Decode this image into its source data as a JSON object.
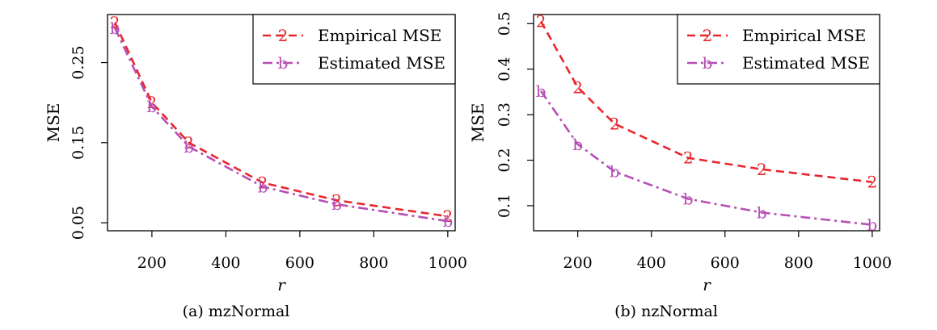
{
  "chart_data": [
    {
      "type": "line",
      "caption": "(a) mzNormal",
      "xlabel": "r",
      "ylabel": "MSE",
      "xlim": [
        80,
        1020
      ],
      "ylim": [
        0.04,
        0.31
      ],
      "xticks": [
        200,
        400,
        600,
        800,
        1000
      ],
      "xtick_labels": [
        "200",
        "400",
        "600",
        "800",
        "1000"
      ],
      "yticks": [
        0.05,
        0.15,
        0.25
      ],
      "ytick_labels": [
        "0.05",
        "0.15",
        "0.25"
      ],
      "x": [
        100,
        200,
        300,
        500,
        700,
        1000
      ],
      "series": [
        {
          "name": "Empirical MSE",
          "marker": "2",
          "color": "#e8262d",
          "dash": "dashed",
          "values": [
            0.3,
            0.2,
            0.15,
            0.1,
            0.078,
            0.058
          ]
        },
        {
          "name": "Estimated MSE",
          "marker": "b",
          "color": "#b64fb6",
          "dash": "dashdot",
          "values": [
            0.293,
            0.195,
            0.145,
            0.095,
            0.073,
            0.052
          ]
        }
      ],
      "legend": "top-right",
      "grid": false
    },
    {
      "type": "line",
      "caption": "(b) nzNormal",
      "xlabel": "r",
      "ylabel": "MSE",
      "xlim": [
        80,
        1020
      ],
      "ylim": [
        0.045,
        0.52
      ],
      "xticks": [
        200,
        400,
        600,
        800,
        1000
      ],
      "xtick_labels": [
        "200",
        "400",
        "600",
        "800",
        "1000"
      ],
      "yticks": [
        0.1,
        0.2,
        0.3,
        0.4,
        0.5
      ],
      "ytick_labels": [
        "0.1",
        "0.2",
        "0.3",
        "0.4",
        "0.5"
      ],
      "x": [
        100,
        200,
        300,
        500,
        700,
        1000
      ],
      "series": [
        {
          "name": "Empirical MSE",
          "marker": "2",
          "color": "#e8262d",
          "dash": "dashed",
          "values": [
            0.505,
            0.36,
            0.28,
            0.205,
            0.18,
            0.152
          ]
        },
        {
          "name": "Estimated MSE",
          "marker": "b",
          "color": "#b64fb6",
          "dash": "dashdot",
          "values": [
            0.352,
            0.235,
            0.175,
            0.115,
            0.085,
            0.058
          ]
        }
      ],
      "legend": "top-right",
      "grid": false
    }
  ]
}
